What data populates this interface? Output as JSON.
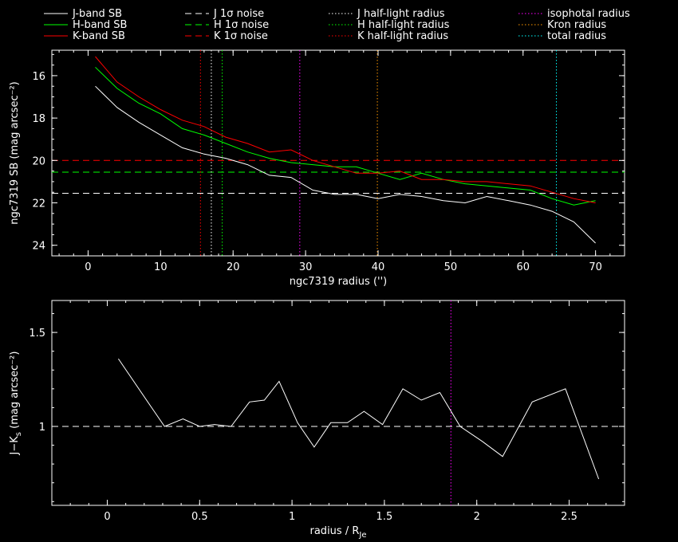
{
  "legend": {
    "entries": [
      {
        "label": "J-band SB",
        "color": "#ffffff",
        "style": "solid"
      },
      {
        "label": "H-band SB",
        "color": "#00ff00",
        "style": "solid"
      },
      {
        "label": "K-band SB",
        "color": "#ff0000",
        "style": "solid"
      },
      {
        "label": "J 1σ noise",
        "color": "#ffffff",
        "style": "dashed"
      },
      {
        "label": "H 1σ noise",
        "color": "#00ff00",
        "style": "dashed"
      },
      {
        "label": "K 1σ noise",
        "color": "#ff0000",
        "style": "dashed"
      },
      {
        "label": "J half-light radius",
        "color": "#ffffff",
        "style": "dotted"
      },
      {
        "label": "H half-light radius",
        "color": "#00ff00",
        "style": "dotted"
      },
      {
        "label": "K half-light radius",
        "color": "#ff0000",
        "style": "dotted"
      },
      {
        "label": "isophotal radius",
        "color": "#ff00ff",
        "style": "dotted"
      },
      {
        "label": "Kron radius",
        "color": "#ff9900",
        "style": "dotted"
      },
      {
        "label": "total radius",
        "color": "#00ffff",
        "style": "dotted"
      }
    ]
  },
  "chart_data": [
    {
      "type": "line",
      "xlabel": "ngc7319 radius ('')",
      "ylabel": "ngc7319 SB (mag arcsec⁻²)",
      "xlim": [
        -5,
        74
      ],
      "ylim": [
        24.5,
        14.8
      ],
      "y_inverted": true,
      "xticks": [
        0,
        10,
        20,
        30,
        40,
        50,
        60,
        70
      ],
      "yticks": [
        16,
        18,
        20,
        22,
        24
      ],
      "x": [
        1,
        4,
        7,
        10,
        13,
        16,
        19,
        22,
        25,
        28,
        31,
        34,
        37,
        40,
        43,
        46,
        49,
        52,
        55,
        58,
        61,
        64,
        67,
        70
      ],
      "series": [
        {
          "name": "J-band SB",
          "color": "#ffffff",
          "values": [
            16.5,
            17.5,
            18.2,
            18.8,
            19.4,
            19.7,
            19.9,
            20.2,
            20.7,
            20.8,
            21.4,
            21.6,
            21.6,
            21.8,
            21.6,
            21.7,
            21.9,
            22.0,
            21.7,
            21.9,
            22.1,
            22.4,
            22.9,
            23.9
          ]
        },
        {
          "name": "H-band SB",
          "color": "#00ff00",
          "values": [
            15.6,
            16.6,
            17.3,
            17.8,
            18.5,
            18.8,
            19.2,
            19.6,
            19.9,
            20.1,
            20.2,
            20.3,
            20.3,
            20.6,
            20.9,
            20.6,
            20.9,
            21.1,
            21.2,
            21.3,
            21.4,
            21.8,
            22.1,
            21.9
          ]
        },
        {
          "name": "K-band SB",
          "color": "#ff0000",
          "values": [
            15.1,
            16.3,
            17.0,
            17.6,
            18.1,
            18.4,
            18.9,
            19.2,
            19.6,
            19.5,
            20.0,
            20.3,
            20.6,
            20.6,
            20.5,
            20.9,
            20.9,
            21.0,
            21.0,
            21.1,
            21.2,
            21.5,
            21.8,
            22.0
          ]
        }
      ],
      "hlines": [
        {
          "label": "J 1σ noise",
          "y": 21.55,
          "color": "#ffffff",
          "style": "dashed"
        },
        {
          "label": "H 1σ noise",
          "y": 20.55,
          "color": "#00ff00",
          "style": "dashed"
        },
        {
          "label": "K 1σ noise",
          "y": 20.0,
          "color": "#ff0000",
          "style": "dashed"
        }
      ],
      "vlines": [
        {
          "label": "K half-light radius",
          "x": 15.5,
          "color": "#ff0000",
          "style": "dotted"
        },
        {
          "label": "J half-light radius",
          "x": 17.0,
          "color": "#ffffff",
          "style": "dotted"
        },
        {
          "label": "H half-light radius",
          "x": 18.5,
          "color": "#00ff00",
          "style": "dotted"
        },
        {
          "label": "isophotal radius",
          "x": 29.2,
          "color": "#ff00ff",
          "style": "dotted"
        },
        {
          "label": "Kron radius",
          "x": 39.9,
          "color": "#ff9900",
          "style": "dotted"
        },
        {
          "label": "total radius",
          "x": 64.6,
          "color": "#00ffff",
          "style": "dotted"
        }
      ]
    },
    {
      "type": "line",
      "xlabel": "radius / R",
      "xlabel_sub": "Je",
      "ylabel": "J−K",
      "ylabel_sub": "s",
      "ylabel_rest": " (mag arcsec⁻²)",
      "xlim": [
        -0.3,
        2.8
      ],
      "ylim": [
        0.58,
        1.67
      ],
      "xticks": [
        0,
        0.5,
        1,
        1.5,
        2,
        2.5
      ],
      "yticks": [
        1,
        1.5
      ],
      "x": [
        0.06,
        0.24,
        0.31,
        0.41,
        0.5,
        0.58,
        0.67,
        0.77,
        0.85,
        0.93,
        1.03,
        1.12,
        1.21,
        1.3,
        1.39,
        1.49,
        1.6,
        1.7,
        1.8,
        1.91,
        2.03,
        2.14,
        2.3,
        2.48,
        2.66
      ],
      "series": [
        {
          "name": "J−Ks",
          "color": "#ffffff",
          "values": [
            1.36,
            1.1,
            1.0,
            1.04,
            1.0,
            1.01,
            1.0,
            1.13,
            1.14,
            1.24,
            1.02,
            0.89,
            1.02,
            1.02,
            1.08,
            1.01,
            1.2,
            1.14,
            1.18,
            1.0,
            0.92,
            0.84,
            1.13,
            1.2,
            0.72
          ]
        }
      ],
      "hlines": [
        {
          "y": 1.0,
          "color": "#ffffff",
          "style": "dashed"
        }
      ],
      "vlines": [
        {
          "x": 1.86,
          "color": "#ff00ff",
          "style": "dotted"
        }
      ]
    }
  ]
}
